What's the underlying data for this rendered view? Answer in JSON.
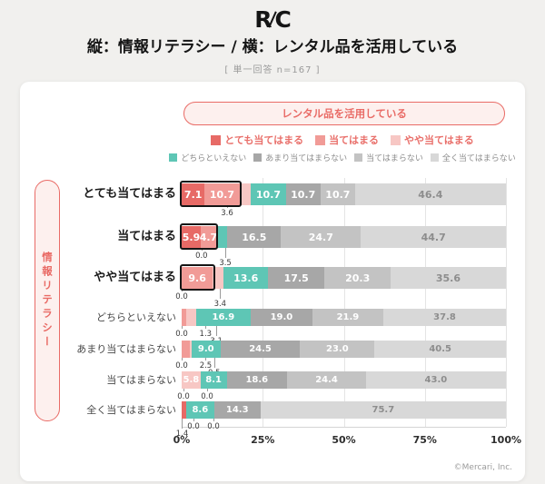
{
  "page": {
    "logo_r": "R",
    "logo_c": "C",
    "title": "縦：情報リテラシー / 横：レンタル品を活用している",
    "subtitle": "[ 単一回答 n=167 ]",
    "footer": "©Mercari, Inc."
  },
  "colors": {
    "accent": "#e96b66",
    "accent_bg": "#fdf0ee",
    "highlight_border": "#151515",
    "page_bg": "#f1f0ee",
    "card_bg": "#ffffff"
  },
  "chart_data": {
    "type": "bar",
    "variant": "horizontal-stacked-100pct",
    "title": "縦：情報リテラシー / 横：レンタル品を活用している",
    "note": "[ 単一回答 n=167 ]",
    "col_header": "レンタル品を活用している",
    "row_header": "情報リテラシー",
    "categories": [
      "とても当てはまる",
      "当てはまる",
      "やや当てはまる",
      "どちらといえない",
      "あまり当てはまらない",
      "当てはまらない",
      "全く当てはまらない"
    ],
    "palette": [
      "#e76a66",
      "#f19b97",
      "#f7c7c4",
      "#5ec6b5",
      "#a7a7a7",
      "#c3c3c3",
      "#d8d8d8"
    ],
    "x_ticks": [
      "0%",
      "25%",
      "50%",
      "75%",
      "100%"
    ],
    "x_range": [
      0,
      100
    ],
    "rows": [
      {
        "label": "とても当てはまる",
        "emphasis": true,
        "highlight_upto": 2,
        "values": [
          7.1,
          10.7,
          3.6,
          10.7,
          10.7,
          10.7,
          46.4
        ],
        "annotations": [
          {
            "seg": 2,
            "level": 0,
            "dx": -20
          }
        ]
      },
      {
        "label": "当てはまる",
        "emphasis": true,
        "highlight_upto": 2,
        "values": [
          5.9,
          4.7,
          0.0,
          3.5,
          16.5,
          24.7,
          44.7
        ],
        "annotations": [
          {
            "seg": 2,
            "level": 0,
            "dx": -16
          },
          {
            "seg": 3,
            "level": 1,
            "dx": 4
          }
        ]
      },
      {
        "label": "やや当てはまる",
        "emphasis": true,
        "highlight_upto": 2,
        "values": [
          0.0,
          9.6,
          3.4,
          13.6,
          17.5,
          20.3,
          35.6
        ],
        "annotations": [
          {
            "seg": 0,
            "level": 0,
            "dx": 0
          },
          {
            "seg": 2,
            "level": 1,
            "dx": 2
          }
        ]
      },
      {
        "label": "どちらといえない",
        "emphasis": false,
        "highlight_upto": null,
        "values": [
          0.0,
          1.3,
          3.1,
          16.9,
          19.0,
          21.9,
          37.8
        ],
        "annotations": [
          {
            "seg": 0,
            "level": 0,
            "dx": 0
          },
          {
            "seg": 1,
            "level": 0,
            "dx": 24
          },
          {
            "seg": 2,
            "level": 1,
            "dx": 28
          }
        ]
      },
      {
        "label": "あまり当てはまらない",
        "emphasis": false,
        "highlight_upto": null,
        "values": [
          0.0,
          2.5,
          0.5,
          9.0,
          24.5,
          23.0,
          40.5
        ],
        "annotations": [
          {
            "seg": 0,
            "level": 0,
            "dx": 0
          },
          {
            "seg": 1,
            "level": 0,
            "dx": 22
          },
          {
            "seg": 2,
            "level": 1,
            "dx": 26
          }
        ]
      },
      {
        "label": "当てはまらない",
        "emphasis": false,
        "highlight_upto": null,
        "values": [
          0.0,
          0.0,
          5.8,
          8.1,
          18.6,
          24.4,
          43.0
        ],
        "annotations": [
          {
            "seg": 0,
            "level": 0,
            "dx": 2
          },
          {
            "seg": 1,
            "level": 0,
            "dx": 28
          }
        ]
      },
      {
        "label": "全く当てはまらない",
        "emphasis": false,
        "highlight_upto": null,
        "values": [
          1.4,
          0.0,
          0.0,
          8.6,
          14.3,
          0.0,
          75.7
        ],
        "annotations": [
          {
            "seg": 0,
            "level": 1,
            "dx": -2
          },
          {
            "seg": 1,
            "level": 0,
            "dx": 8
          },
          {
            "seg": 2,
            "level": 0,
            "dx": 30
          }
        ]
      }
    ]
  }
}
